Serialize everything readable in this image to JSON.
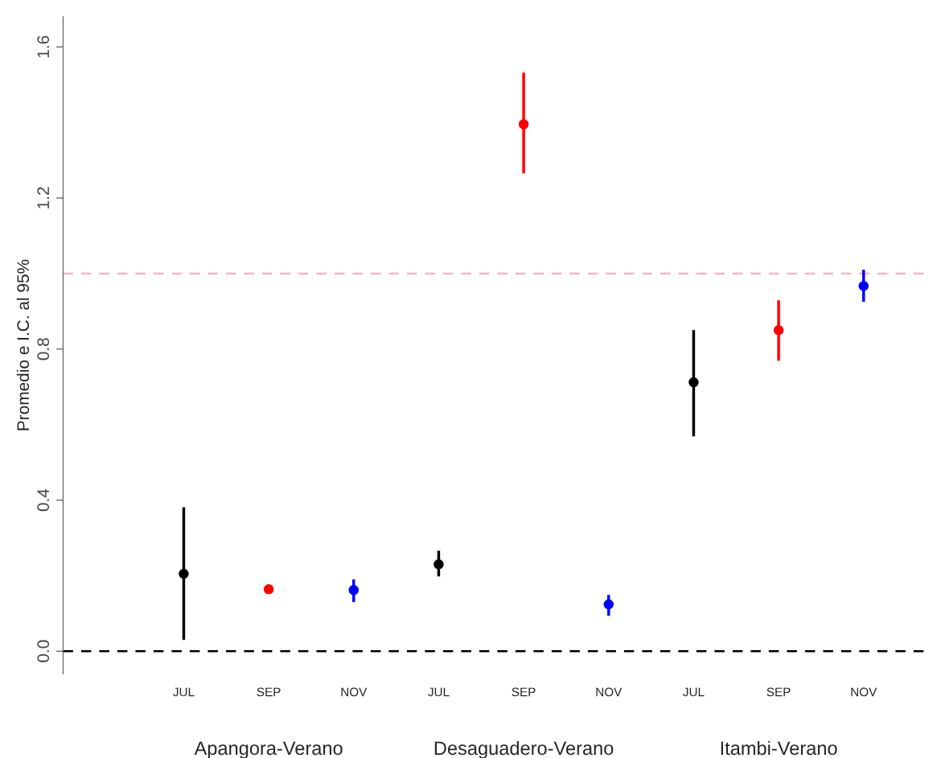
{
  "chart_data": {
    "type": "scatter",
    "ylabel": "Promedio e I.C. al 95%",
    "categories": [
      "JUL",
      "SEP",
      "NOV",
      "JUL",
      "SEP",
      "NOV",
      "JUL",
      "SEP",
      "NOV"
    ],
    "values": [
      0.205,
      0.164,
      0.162,
      0.23,
      1.395,
      0.124,
      0.712,
      0.85,
      0.967
    ],
    "errors": [
      [
        0.03,
        0.381
      ],
      null,
      [
        0.13,
        0.19
      ],
      [
        0.198,
        0.266
      ],
      [
        1.265,
        1.532
      ],
      [
        0.094,
        0.149
      ],
      [
        0.569,
        0.85
      ],
      [
        0.769,
        0.929
      ],
      [
        0.925,
        1.01
      ]
    ],
    "colors": [
      "#000000",
      "#ff0000",
      "#0000ff",
      "#000000",
      "#ff0000",
      "#0000ff",
      "#000000",
      "#ff0000",
      "#0000ff"
    ],
    "ylim": [
      -0.06,
      1.68
    ],
    "yticks": [
      {
        "value": 0,
        "label": "0.0"
      },
      0.4,
      0.8,
      1.2,
      1.6
    ],
    "ref_lines": [
      {
        "axis": "y",
        "value": 0,
        "color": "#000000",
        "line_style": "dashed"
      },
      {
        "axis": "y",
        "value": 1.0,
        "color": "#f4b6c2",
        "line_style": "dashed"
      }
    ],
    "annotations": [
      "Apangora-Verano",
      "Desaguadero-Verano",
      "Itambi-Verano"
    ],
    "marker": "circle",
    "grid": false,
    "legend": false
  }
}
